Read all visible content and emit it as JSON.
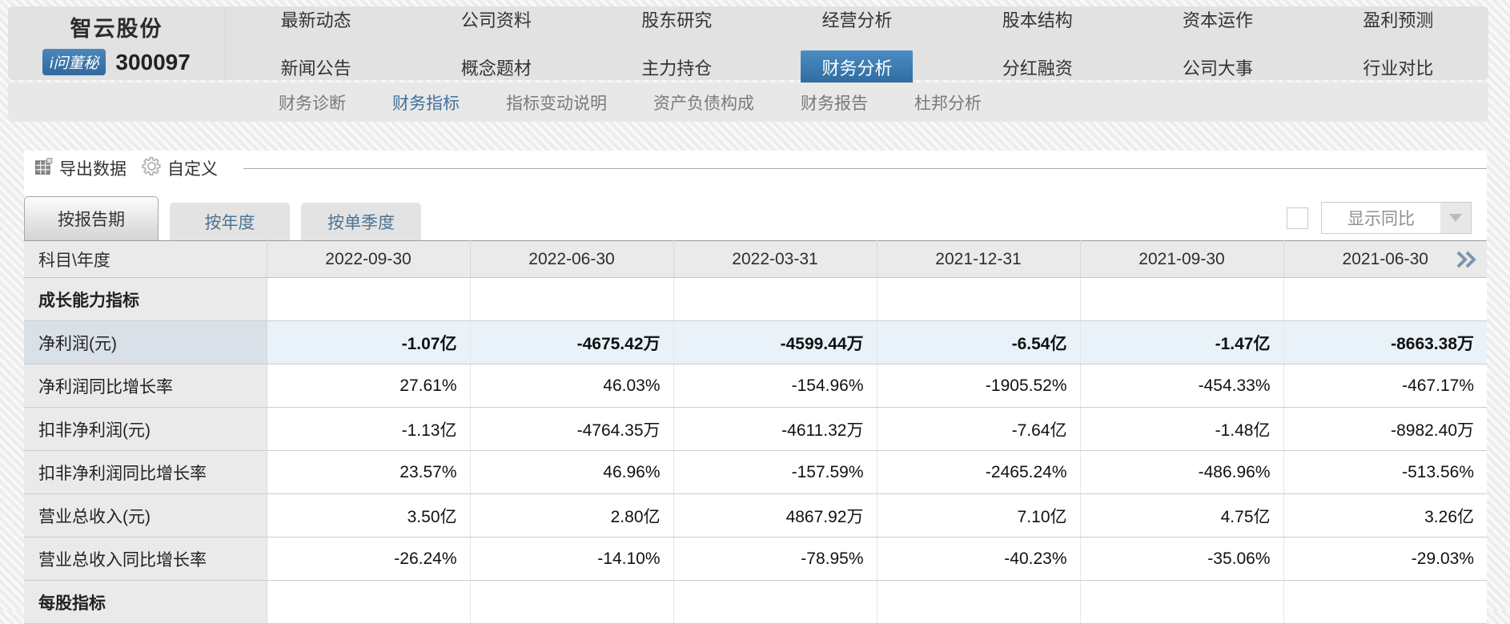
{
  "header": {
    "company_name": "智云股份",
    "stock_code": "300097",
    "badge": "i问董秘",
    "nav_rows": [
      [
        "最新动态",
        "公司资料",
        "股东研究",
        "经营分析",
        "股本结构",
        "资本运作",
        "盈利预测"
      ],
      [
        "新闻公告",
        "概念题材",
        "主力持仓",
        "财务分析",
        "分红融资",
        "公司大事",
        "行业对比"
      ]
    ],
    "active_nav": "财务分析"
  },
  "subnav": {
    "items": [
      "财务诊断",
      "财务指标",
      "指标变动说明",
      "资产负债构成",
      "财务报告",
      "杜邦分析"
    ],
    "active": "财务指标"
  },
  "toolbar": {
    "export_label": "导出数据",
    "customize_label": "自定义"
  },
  "tabs": {
    "items": [
      "按报告期",
      "按年度",
      "按单季度"
    ],
    "active": "按报告期"
  },
  "controls": {
    "checkbox_checked": false,
    "dropdown_label": "显示同比"
  },
  "table": {
    "corner_header": "科目\\年度",
    "columns": [
      "2022-09-30",
      "2022-06-30",
      "2022-03-31",
      "2021-12-31",
      "2021-09-30",
      "2021-06-30"
    ],
    "rows": [
      {
        "label": "成长能力指标",
        "type": "section",
        "values": [
          "",
          "",
          "",
          "",
          "",
          ""
        ]
      },
      {
        "label": "净利润(元)",
        "type": "highlight",
        "values": [
          "-1.07亿",
          "-4675.42万",
          "-4599.44万",
          "-6.54亿",
          "-1.47亿",
          "-8663.38万"
        ]
      },
      {
        "label": "净利润同比增长率",
        "type": "normal",
        "values": [
          "27.61%",
          "46.03%",
          "-154.96%",
          "-1905.52%",
          "-454.33%",
          "-467.17%"
        ]
      },
      {
        "label": "扣非净利润(元)",
        "type": "normal",
        "values": [
          "-1.13亿",
          "-4764.35万",
          "-4611.32万",
          "-7.64亿",
          "-1.48亿",
          "-8982.40万"
        ]
      },
      {
        "label": "扣非净利润同比增长率",
        "type": "normal",
        "values": [
          "23.57%",
          "46.96%",
          "-157.59%",
          "-2465.24%",
          "-486.96%",
          "-513.56%"
        ]
      },
      {
        "label": "营业总收入(元)",
        "type": "normal",
        "values": [
          "3.50亿",
          "2.80亿",
          "4867.92万",
          "7.10亿",
          "4.75亿",
          "3.26亿"
        ]
      },
      {
        "label": "营业总收入同比增长率",
        "type": "normal",
        "values": [
          "-26.24%",
          "-14.10%",
          "-78.95%",
          "-40.23%",
          "-35.06%",
          "-29.03%"
        ]
      },
      {
        "label": "每股指标",
        "type": "section",
        "values": [
          "",
          "",
          "",
          "",
          "",
          ""
        ]
      }
    ]
  },
  "icons": {
    "export": "excel-grid-icon",
    "customize": "gear-icon",
    "more_columns": "double-chevron-right-icon",
    "dropdown": "triangle-down-icon"
  },
  "colors": {
    "accent_blue": "#3f7cb5",
    "subnav_active": "#41719c",
    "band_grey": "#e2e2e2",
    "highlight_row_bg": "#eaf2f9",
    "highlight_label_bg": "#d9e0e8",
    "header_cell_bg": "#eaeaea"
  }
}
